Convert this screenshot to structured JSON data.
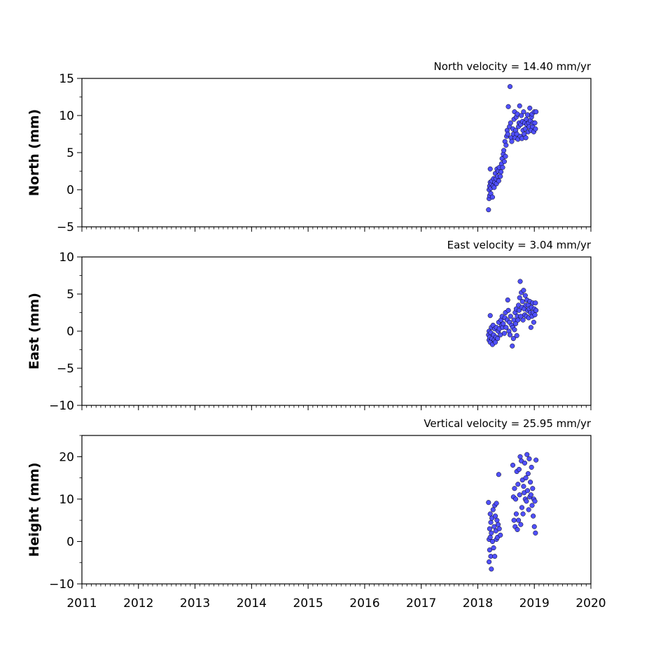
{
  "chart_data": [
    {
      "type": "scatter",
      "title": "North velocity = 14.40 mm/yr",
      "ylabel": "North (mm)",
      "xlabel": "",
      "xlim": [
        2011,
        2020
      ],
      "ylim": [
        -5,
        15
      ],
      "yticks": [
        -5,
        0,
        5,
        10,
        15
      ],
      "yticklabels": [
        "−5",
        "0",
        "5",
        "10",
        "15"
      ],
      "xticks": [
        2011,
        2012,
        2013,
        2014,
        2015,
        2016,
        2017,
        2018,
        2019,
        2020
      ],
      "xticklabels_visible": false,
      "marker_color": "#5050ff",
      "marker_edge": "#000000",
      "x": [
        2018.19,
        2018.2,
        2018.2,
        2018.21,
        2018.21,
        2018.22,
        2018.22,
        2018.23,
        2018.23,
        2018.24,
        2018.25,
        2018.26,
        2018.27,
        2018.28,
        2018.29,
        2018.3,
        2018.31,
        2018.32,
        2018.33,
        2018.34,
        2018.35,
        2018.36,
        2018.37,
        2018.38,
        2018.4,
        2018.41,
        2018.42,
        2018.43,
        2018.44,
        2018.45,
        2018.46,
        2018.47,
        2018.48,
        2018.49,
        2018.5,
        2018.51,
        2018.52,
        2018.53,
        2018.54,
        2018.56,
        2018.57,
        2018.58,
        2018.59,
        2018.6,
        2018.62,
        2018.63,
        2018.64,
        2018.65,
        2018.66,
        2018.67,
        2018.68,
        2018.69,
        2018.7,
        2018.71,
        2018.72,
        2018.73,
        2018.74,
        2018.75,
        2018.76,
        2018.77,
        2018.78,
        2018.79,
        2018.8,
        2018.81,
        2018.82,
        2018.83,
        2018.84,
        2018.85,
        2018.86,
        2018.87,
        2018.88,
        2018.89,
        2018.9,
        2018.91,
        2018.92,
        2018.93,
        2018.94,
        2018.95,
        2018.96,
        2018.97,
        2018.98,
        2018.99,
        2019.0,
        2019.01,
        2019.02,
        2019.03
      ],
      "y": [
        -2.7,
        -1.2,
        0.0,
        0.5,
        -0.8,
        1.0,
        2.8,
        0.2,
        -0.5,
        0.8,
        1.2,
        -1.0,
        0.5,
        1.5,
        0.3,
        1.0,
        2.2,
        1.5,
        0.8,
        2.8,
        1.8,
        2.5,
        1.2,
        3.0,
        1.8,
        2.4,
        3.5,
        4.2,
        3.0,
        4.8,
        5.3,
        3.8,
        6.5,
        4.5,
        6.0,
        7.2,
        8.0,
        7.5,
        11.2,
        8.5,
        13.9,
        9.0,
        7.0,
        6.5,
        8.2,
        7.5,
        9.5,
        10.5,
        7.0,
        8.0,
        9.8,
        7.5,
        10.2,
        6.8,
        8.5,
        9.0,
        11.3,
        7.2,
        8.8,
        10.0,
        6.9,
        9.2,
        8.0,
        10.5,
        7.5,
        9.0,
        8.2,
        7.0,
        9.5,
        8.8,
        10.1,
        7.8,
        9.0,
        8.5,
        11.0,
        9.3,
        8.0,
        9.8,
        10.2,
        8.5,
        9.0,
        7.8,
        10.5,
        9.0,
        8.2,
        10.5
      ]
    },
    {
      "type": "scatter",
      "title": "East velocity = 3.04 mm/yr",
      "ylabel": "East (mm)",
      "xlabel": "",
      "xlim": [
        2011,
        2020
      ],
      "ylim": [
        -10,
        10
      ],
      "yticks": [
        -10,
        -5,
        0,
        5,
        10
      ],
      "yticklabels": [
        "−10",
        "−5",
        "0",
        "5",
        "10"
      ],
      "xticks": [
        2011,
        2012,
        2013,
        2014,
        2015,
        2016,
        2017,
        2018,
        2019,
        2020
      ],
      "xticklabels_visible": false,
      "marker_color": "#5050ff",
      "marker_edge": "#000000",
      "x": [
        2018.19,
        2018.2,
        2018.2,
        2018.21,
        2018.22,
        2018.22,
        2018.23,
        2018.24,
        2018.25,
        2018.26,
        2018.27,
        2018.28,
        2018.29,
        2018.3,
        2018.31,
        2018.32,
        2018.33,
        2018.35,
        2018.36,
        2018.37,
        2018.38,
        2018.4,
        2018.41,
        2018.42,
        2018.43,
        2018.44,
        2018.45,
        2018.47,
        2018.48,
        2018.49,
        2018.5,
        2018.52,
        2018.53,
        2018.54,
        2018.55,
        2018.56,
        2018.57,
        2018.58,
        2018.6,
        2018.61,
        2018.62,
        2018.63,
        2018.64,
        2018.65,
        2018.66,
        2018.67,
        2018.68,
        2018.69,
        2018.7,
        2018.71,
        2018.72,
        2018.73,
        2018.74,
        2018.75,
        2018.76,
        2018.77,
        2018.78,
        2018.79,
        2018.8,
        2018.81,
        2018.82,
        2018.83,
        2018.84,
        2018.85,
        2018.86,
        2018.87,
        2018.88,
        2018.89,
        2018.9,
        2018.91,
        2018.92,
        2018.93,
        2018.94,
        2018.95,
        2018.96,
        2018.97,
        2018.98,
        2018.99,
        2019.0,
        2019.01,
        2019.02,
        2019.03
      ],
      "y": [
        -0.5,
        -1.2,
        0.0,
        -0.8,
        2.1,
        -1.5,
        -0.2,
        0.5,
        -1.0,
        -1.8,
        0.8,
        -0.5,
        -1.2,
        0.3,
        -1.5,
        -0.8,
        0.5,
        -1.0,
        0.0,
        1.2,
        0.3,
        -0.5,
        1.5,
        0.8,
        2.0,
        0.5,
        1.0,
        -0.3,
        1.8,
        2.5,
        0.5,
        1.5,
        4.2,
        2.8,
        0.0,
        1.2,
        -0.5,
        2.0,
        0.8,
        -2.0,
        0.5,
        -1.0,
        1.5,
        0.2,
        2.5,
        1.0,
        3.0,
        -0.6,
        2.0,
        1.5,
        3.5,
        2.8,
        4.5,
        6.7,
        2.0,
        5.2,
        3.2,
        4.0,
        1.5,
        5.5,
        3.0,
        2.2,
        4.8,
        3.5,
        2.0,
        4.2,
        2.8,
        3.5,
        1.8,
        3.0,
        4.0,
        2.5,
        0.5,
        3.2,
        2.0,
        3.8,
        2.5,
        1.2,
        3.0,
        2.2,
        3.8,
        2.8
      ]
    },
    {
      "type": "scatter",
      "title": "Vertical velocity = 25.95 mm/yr",
      "ylabel": "Height (mm)",
      "xlabel": "",
      "xlim": [
        2011,
        2020
      ],
      "ylim": [
        -10,
        25
      ],
      "yticks": [
        -10,
        0,
        10,
        20
      ],
      "yticklabels": [
        "−10",
        "0",
        "10",
        "20"
      ],
      "xticks": [
        2011,
        2012,
        2013,
        2014,
        2015,
        2016,
        2017,
        2018,
        2019,
        2020
      ],
      "xticklabels": [
        "2011",
        "2012",
        "2013",
        "2014",
        "2015",
        "2016",
        "2017",
        "2018",
        "2019",
        "2020"
      ],
      "xticklabels_visible": true,
      "marker_color": "#5050ff",
      "marker_edge": "#000000",
      "x": [
        2018.19,
        2018.2,
        2018.2,
        2018.21,
        2018.21,
        2018.22,
        2018.22,
        2018.23,
        2018.23,
        2018.24,
        2018.24,
        2018.25,
        2018.26,
        2018.27,
        2018.28,
        2018.29,
        2018.3,
        2018.3,
        2018.31,
        2018.32,
        2018.33,
        2018.33,
        2018.34,
        2018.35,
        2018.36,
        2018.37,
        2018.38,
        2018.4,
        2018.62,
        2018.63,
        2018.64,
        2018.65,
        2018.66,
        2018.67,
        2018.68,
        2018.69,
        2018.7,
        2018.71,
        2018.72,
        2018.73,
        2018.74,
        2018.75,
        2018.76,
        2018.77,
        2018.78,
        2018.79,
        2018.8,
        2018.81,
        2018.82,
        2018.83,
        2018.84,
        2018.85,
        2018.86,
        2018.87,
        2018.88,
        2018.89,
        2018.9,
        2018.91,
        2018.92,
        2018.93,
        2018.94,
        2018.95,
        2018.96,
        2018.97,
        2018.98,
        2018.99,
        2019.0,
        2019.01,
        2019.02,
        2019.03
      ],
      "y": [
        9.2,
        0.5,
        -4.8,
        3.0,
        -2.0,
        6.5,
        1.0,
        -3.5,
        4.5,
        -6.5,
        2.0,
        5.5,
        0.0,
        7.5,
        -1.5,
        3.5,
        8.5,
        -3.5,
        6.0,
        2.5,
        9.0,
        0.5,
        5.0,
        1.0,
        4.0,
        15.8,
        3.0,
        1.5,
        18.0,
        10.5,
        5.0,
        12.5,
        3.5,
        10.0,
        6.5,
        16.5,
        2.8,
        13.5,
        5.0,
        17.0,
        11.0,
        20.0,
        4.0,
        19.0,
        8.0,
        14.5,
        6.5,
        13.0,
        11.5,
        18.5,
        10.0,
        15.0,
        9.5,
        20.5,
        12.0,
        16.0,
        7.5,
        19.5,
        10.5,
        14.0,
        11.0,
        17.5,
        8.5,
        12.5,
        6.0,
        10.0,
        3.5,
        9.5,
        2.0,
        19.2
      ]
    }
  ]
}
